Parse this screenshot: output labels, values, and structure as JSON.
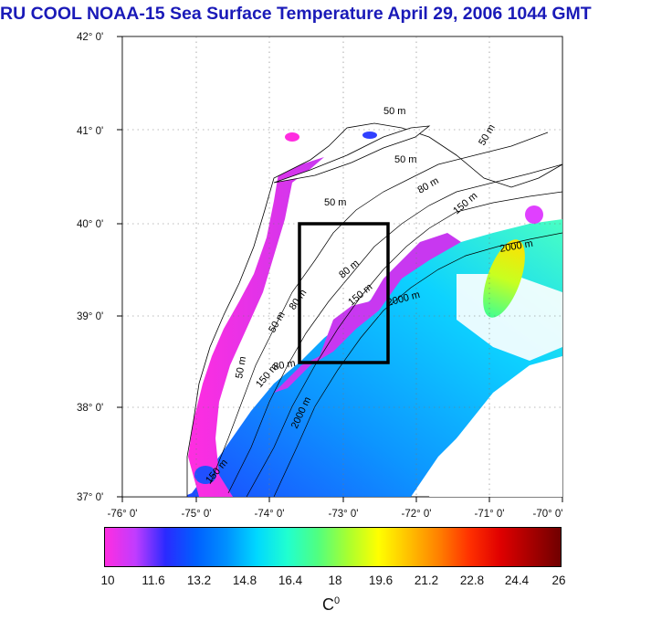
{
  "title": "RU COOL  NOAA-15 Sea Surface Temperature April 29, 2006 1044 GMT",
  "axes": {
    "lat_labels": [
      "42° 0'",
      "41° 0'",
      "40° 0'",
      "39° 0'",
      "38° 0'",
      "37° 0'"
    ],
    "lon_labels": [
      "-76° 0'",
      "-75° 0'",
      "-74° 0'",
      "-73° 0'",
      "-72° 0'",
      "-71° 0'",
      "-70° 0'"
    ],
    "lat_range": [
      37,
      42
    ],
    "lon_range": [
      -76,
      -70
    ]
  },
  "isobaths": {
    "labels": [
      "50 m",
      "50 m",
      "50 m",
      "80 m",
      "80 m",
      "150 m",
      "2000 m",
      "2000 m",
      "150 m",
      "50 m",
      "50 m",
      "80 m",
      "150 m",
      "2000 m",
      "150 m",
      "80 m",
      "50 m"
    ]
  },
  "study_box": {
    "lon_min": -73.5,
    "lon_max": -72.5,
    "lat_min": 38.5,
    "lat_max": 40.0
  },
  "colorbar": {
    "ticks": [
      "10",
      "11.6",
      "13.2",
      "14.8",
      "16.4",
      "18",
      "19.6",
      "21.2",
      "22.8",
      "24.4",
      "26"
    ],
    "unit": "C",
    "unit_sup": "0",
    "range": [
      10,
      26
    ],
    "colors": [
      "#ff2de0",
      "#c03cff",
      "#2a2aff",
      "#0060ff",
      "#0090ff",
      "#00d8ff",
      "#20ffd0",
      "#50ff80",
      "#a8ff30",
      "#ffff00",
      "#ffc000",
      "#ff8000",
      "#ff3000",
      "#e00000",
      "#a80000",
      "#700000"
    ]
  },
  "colors": {
    "title": "#1a1ab8",
    "land": "#ffffff",
    "cloud": "#ffffff",
    "box": "#000000"
  }
}
